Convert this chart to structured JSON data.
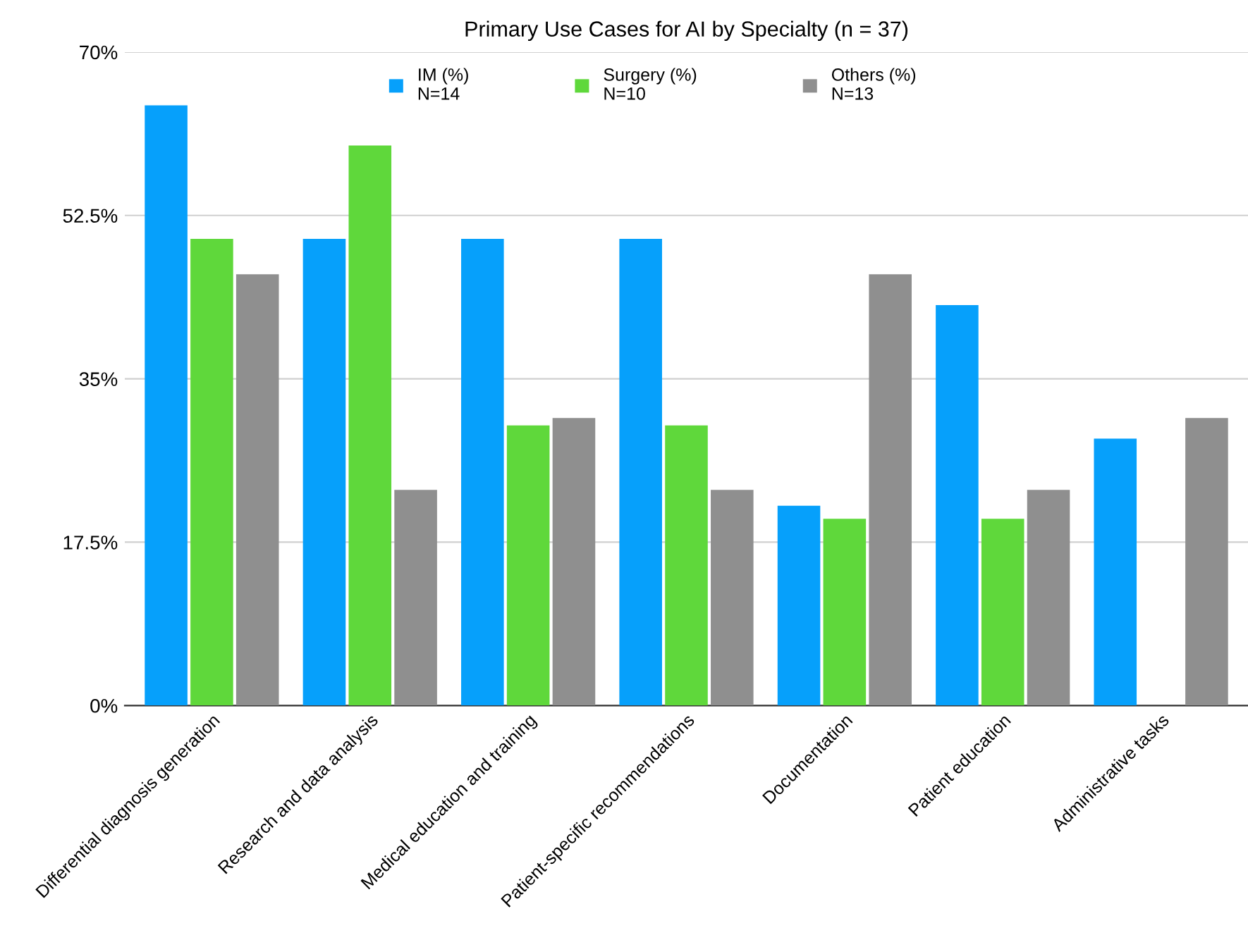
{
  "chart_data": {
    "type": "bar",
    "title": "Primary Use Cases for AI by Specialty (n = 37)",
    "categories": [
      "Differential diagnosis generation",
      "Research and data analysis",
      "Medical education and training",
      "Patient-specific recommendations",
      "Documentation",
      "Patient education",
      "Administrative tasks"
    ],
    "series": [
      {
        "name": "IM (%)\nN=14",
        "color": "#06a0fb",
        "values": [
          64.3,
          50,
          50,
          50,
          21.4,
          42.9,
          28.6
        ]
      },
      {
        "name": "Surgery (%)\nN=10",
        "color": "#5fd83b",
        "values": [
          50,
          60,
          30,
          30,
          20,
          20,
          0
        ]
      },
      {
        "name": "Others (%)\nN=13",
        "color": "#8f8f8f",
        "values": [
          46.2,
          23.1,
          30.8,
          23.1,
          46.2,
          23.1,
          30.8
        ]
      }
    ],
    "ylim": [
      0,
      70
    ],
    "yticks": [
      {
        "value": 0,
        "label": "0%"
      },
      {
        "value": 17.5,
        "label": "17.5%"
      },
      {
        "value": 35,
        "label": "35%"
      },
      {
        "value": 52.5,
        "label": "52.5%"
      },
      {
        "value": 70,
        "label": "70%"
      }
    ],
    "grid": "y",
    "legend": "top"
  }
}
